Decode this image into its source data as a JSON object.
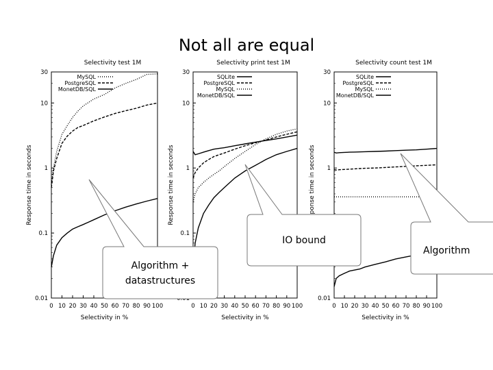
{
  "slide": {
    "title": "Not all are equal"
  },
  "callouts": [
    {
      "text_line1": "Algorithm +",
      "text_line2": "datastructures"
    },
    {
      "text_line1": "IO bound",
      "text_line2": ""
    },
    {
      "text_line1": "Algorithm",
      "text_line2": ""
    }
  ],
  "colors": {
    "curve": "#000000",
    "callout_fill": "#ffffff",
    "callout_stroke": "#777777"
  },
  "chart_data": [
    {
      "type": "line",
      "title": "Selectivity test 1M",
      "xlabel": "Selectivity in %",
      "ylabel": "Response time in seconds",
      "xlim": [
        0,
        100
      ],
      "ylim": [
        0.01,
        30
      ],
      "yscale": "log",
      "x_ticks": [
        "0",
        "10",
        "20",
        "30",
        "40",
        "50",
        "60",
        "70",
        "80",
        "90",
        "100"
      ],
      "y_ticks": [
        "0.01",
        "0.1",
        "1",
        "10",
        "30"
      ],
      "legend_position": "top-left",
      "x": [
        0,
        2,
        5,
        10,
        15,
        20,
        25,
        30,
        40,
        50,
        60,
        70,
        80,
        90,
        100
      ],
      "series": [
        {
          "name": "MySQL",
          "dash": "1,2",
          "values": [
            0.55,
            1.0,
            1.8,
            3.3,
            4.5,
            6.0,
            7.5,
            9.0,
            11.5,
            13.5,
            17.0,
            20.0,
            23.0,
            27.5,
            28.0
          ]
        },
        {
          "name": "PostgreSQL",
          "dash": "4,2",
          "values": [
            0.5,
            0.9,
            1.4,
            2.4,
            3.1,
            3.7,
            4.2,
            4.5,
            5.3,
            6.1,
            6.9,
            7.6,
            8.3,
            9.3,
            10.0
          ]
        },
        {
          "name": "MonetDB/SQL",
          "dash": "",
          "values": [
            0.03,
            0.045,
            0.065,
            0.085,
            0.1,
            0.115,
            0.125,
            0.135,
            0.16,
            0.19,
            0.22,
            0.25,
            0.28,
            0.31,
            0.34
          ]
        }
      ]
    },
    {
      "type": "line",
      "title": "Selectivity print test 1M",
      "xlabel": "Selectivity in %",
      "ylabel": "Response time in seconds",
      "xlim": [
        0,
        100
      ],
      "ylim": [
        0.01,
        30
      ],
      "yscale": "log",
      "x_ticks": [
        "0",
        "10",
        "20",
        "30",
        "40",
        "50",
        "60",
        "70",
        "80",
        "90",
        "100"
      ],
      "y_ticks": [
        "0.01",
        "0.1",
        "1",
        "10",
        "30"
      ],
      "legend_position": "top-left",
      "x": [
        0,
        2,
        5,
        10,
        15,
        20,
        25,
        30,
        40,
        50,
        60,
        70,
        80,
        90,
        100
      ],
      "series": [
        {
          "name": "SQLite",
          "dash": "",
          "values": [
            1.8,
            1.6,
            1.65,
            1.75,
            1.85,
            1.95,
            2.0,
            2.05,
            2.2,
            2.35,
            2.5,
            2.65,
            2.8,
            3.0,
            3.2
          ]
        },
        {
          "name": "PostgreSQL",
          "dash": "4,2",
          "values": [
            0.7,
            0.85,
            1.0,
            1.2,
            1.35,
            1.5,
            1.6,
            1.7,
            1.95,
            2.2,
            2.45,
            2.7,
            3.0,
            3.3,
            3.6
          ]
        },
        {
          "name": "MySQL",
          "dash": "1,2",
          "values": [
            0.3,
            0.4,
            0.5,
            0.6,
            0.7,
            0.8,
            0.9,
            1.05,
            1.4,
            1.8,
            2.3,
            2.8,
            3.3,
            3.7,
            4.0
          ]
        },
        {
          "name": "MonetDB/SQL",
          "dash": "",
          "values": [
            0.03,
            0.07,
            0.12,
            0.2,
            0.27,
            0.35,
            0.42,
            0.5,
            0.7,
            0.9,
            1.1,
            1.35,
            1.6,
            1.8,
            2.0
          ]
        }
      ]
    },
    {
      "type": "line",
      "title": "Selectivity count test 1M",
      "xlabel": "Selectivity in %",
      "ylabel": "Response time in seconds",
      "xlim": [
        0,
        100
      ],
      "ylim": [
        0.01,
        30
      ],
      "yscale": "log",
      "x_ticks": [
        "0",
        "10",
        "20",
        "30",
        "40",
        "50",
        "60",
        "70",
        "80",
        "90",
        "100"
      ],
      "y_ticks": [
        "0.01",
        "0.1",
        "1",
        "10",
        "30"
      ],
      "legend_position": "top-left",
      "x": [
        0,
        2,
        5,
        10,
        15,
        20,
        25,
        30,
        40,
        50,
        60,
        70,
        80,
        90,
        100
      ],
      "series": [
        {
          "name": "SQLite",
          "dash": "",
          "values": [
            1.75,
            1.7,
            1.72,
            1.74,
            1.75,
            1.76,
            1.77,
            1.78,
            1.8,
            1.82,
            1.85,
            1.88,
            1.9,
            1.95,
            2.0
          ]
        },
        {
          "name": "PostgreSQL",
          "dash": "4,2",
          "values": [
            0.95,
            0.93,
            0.94,
            0.95,
            0.96,
            0.97,
            0.98,
            0.99,
            1.0,
            1.02,
            1.04,
            1.06,
            1.08,
            1.1,
            1.12
          ]
        },
        {
          "name": "MySQL",
          "dash": "1,2",
          "values": [
            0.36,
            0.36,
            0.36,
            0.36,
            0.36,
            0.36,
            0.36,
            0.36,
            0.36,
            0.36,
            0.36,
            0.36,
            0.36,
            0.36,
            0.36
          ]
        },
        {
          "name": "MonetDB/SQL",
          "dash": "",
          "values": [
            0.015,
            0.02,
            0.022,
            0.024,
            0.026,
            0.027,
            0.028,
            0.03,
            0.033,
            0.036,
            0.04,
            0.043,
            0.046,
            0.05,
            0.053
          ]
        }
      ]
    }
  ]
}
